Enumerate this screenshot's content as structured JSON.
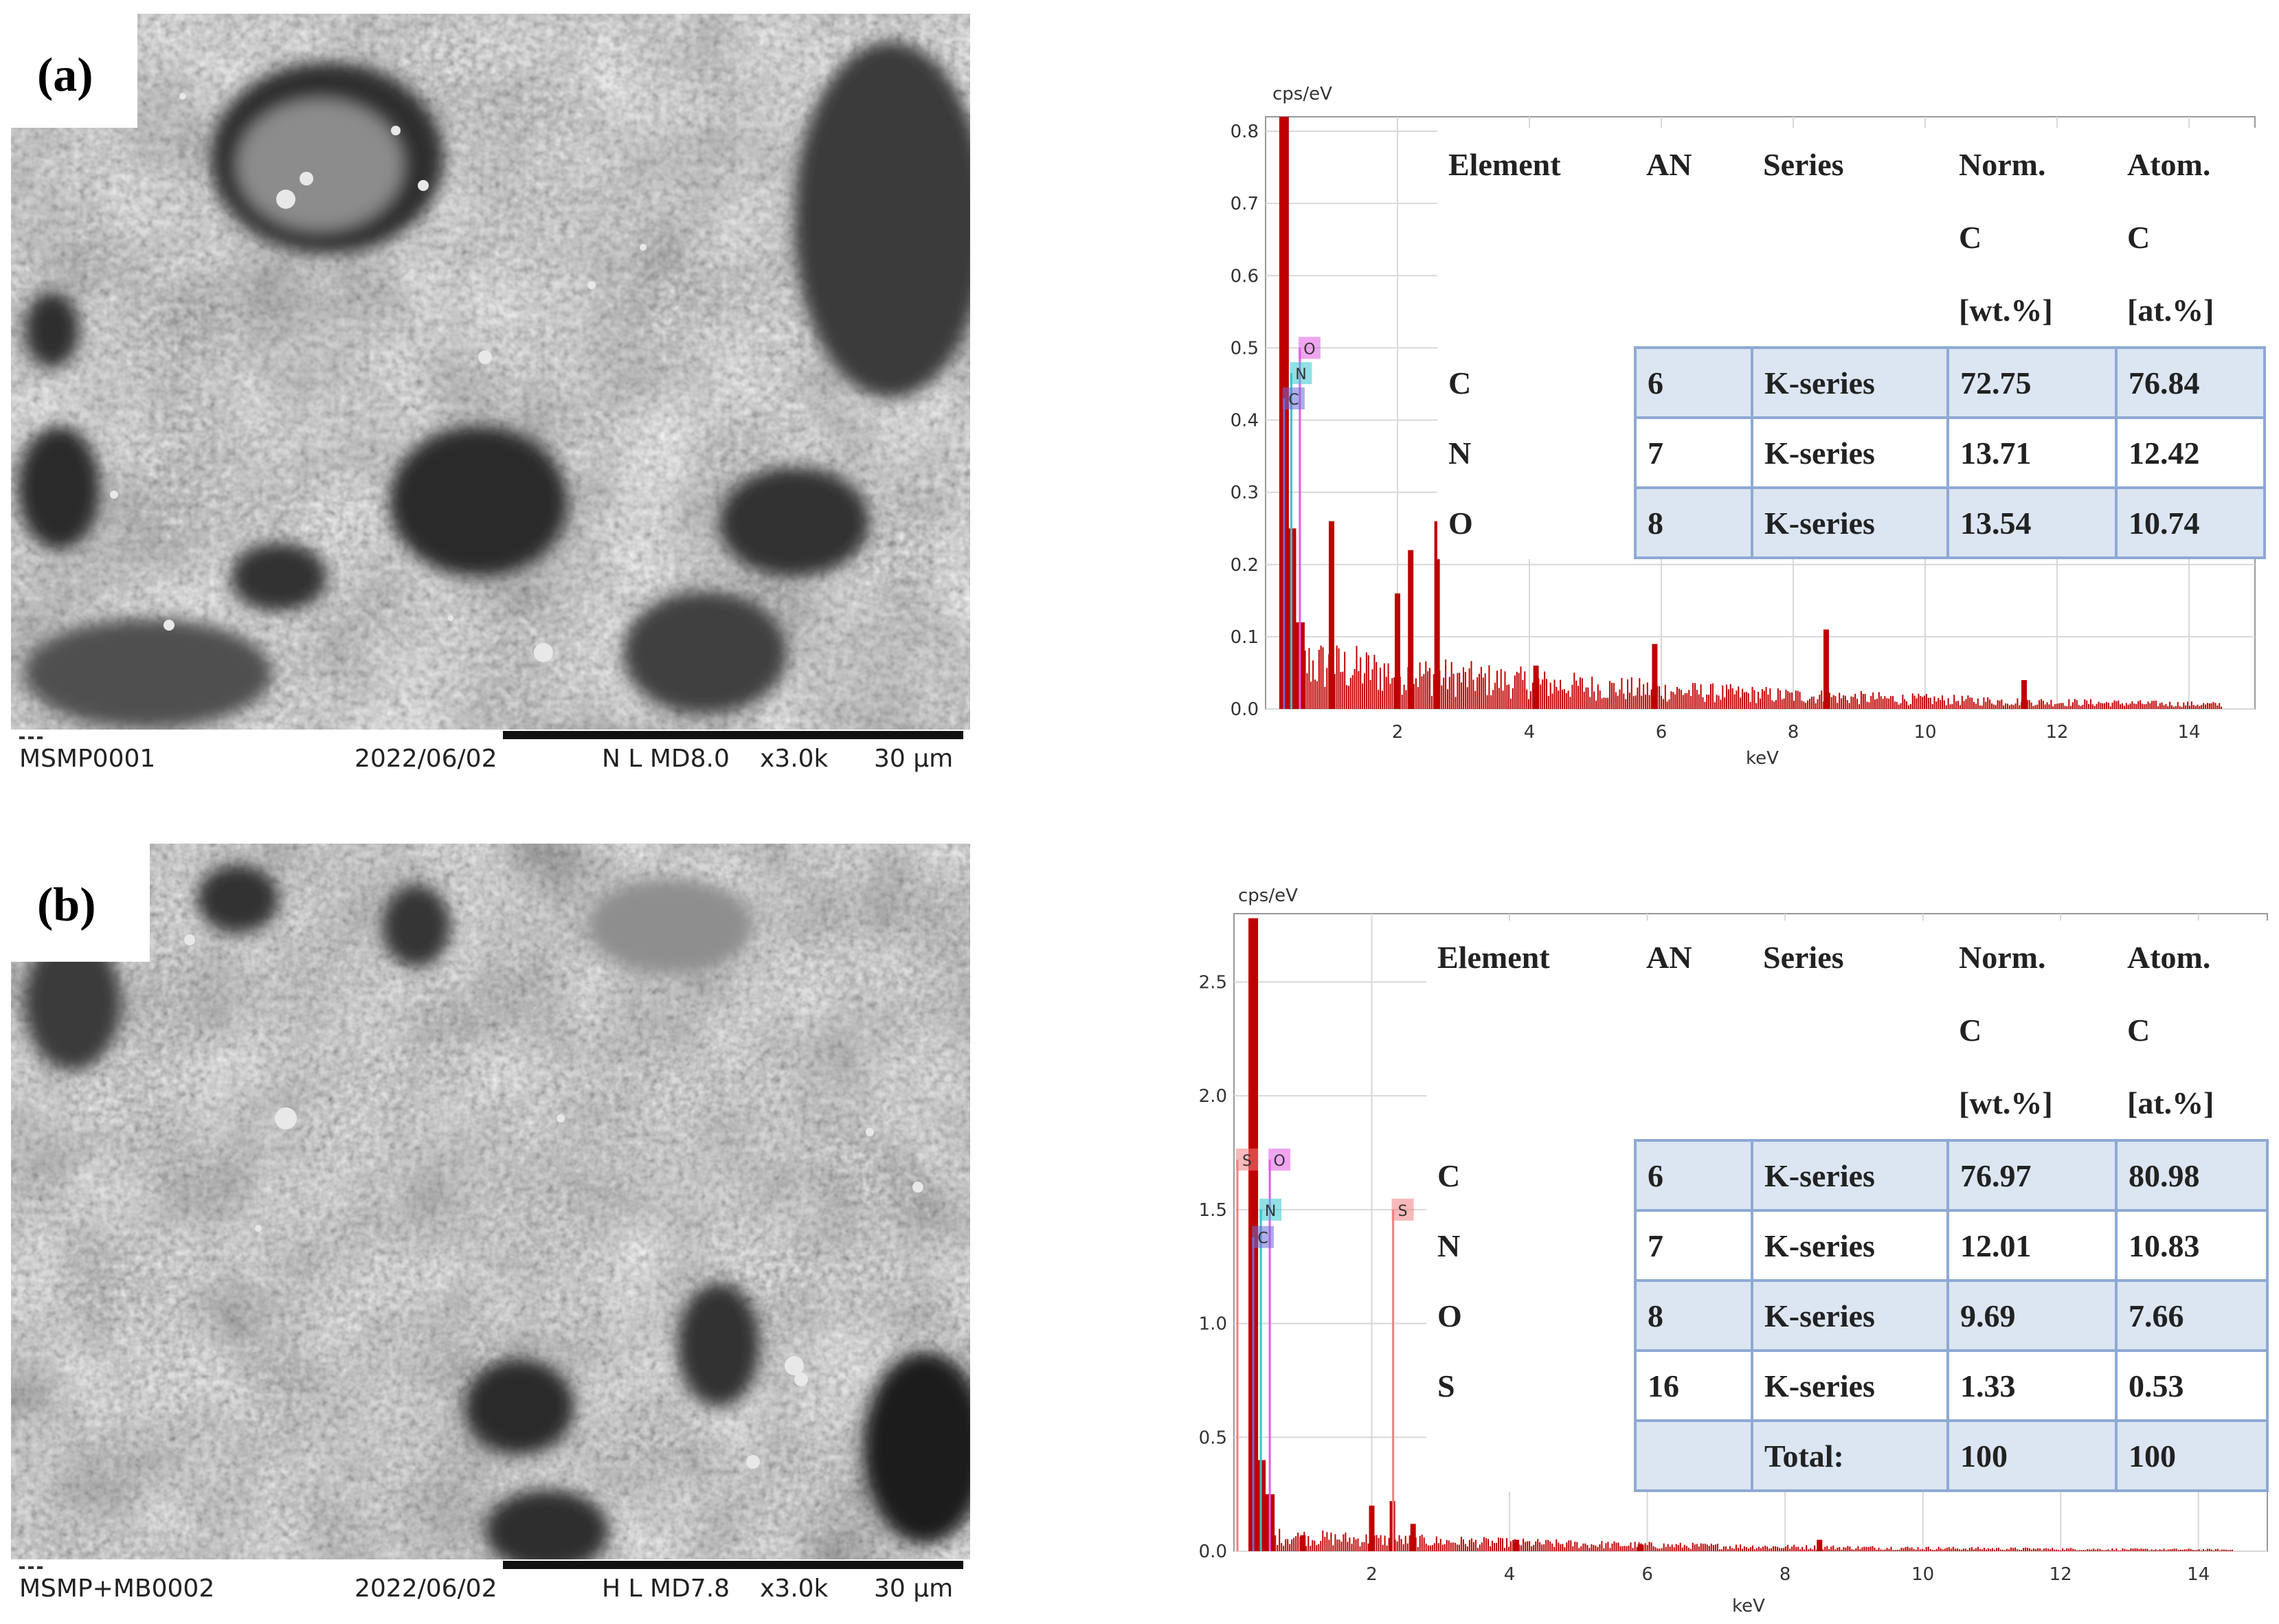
{
  "panels": [
    {
      "label": "(a)",
      "sem": {
        "sample_id": "MSMP0001",
        "date": "2022/06/02",
        "mode": "N L MD8.0",
        "magnification": "x3.0k",
        "scale_bar": "30 μm"
      },
      "spectrum": {
        "y_unit": "cps/eV",
        "x_label": "keV",
        "y_ticks": [
          "0.0",
          "0.1",
          "0.2",
          "0.3",
          "0.4",
          "0.5",
          "0.6",
          "0.7",
          "0.8"
        ],
        "x_ticks": [
          "2",
          "4",
          "6",
          "8",
          "10",
          "12",
          "14"
        ],
        "peak_labels": [
          "O",
          "N",
          "C"
        ]
      },
      "table": {
        "headers": [
          [
            "Element",
            "AN",
            "Series",
            "Norm.",
            "Atom."
          ],
          [
            "",
            "",
            "",
            "C",
            "C"
          ],
          [
            "",
            "",
            "",
            "[wt.%]",
            "[at.%]"
          ]
        ],
        "rows": [
          [
            "C",
            "6",
            "K-series",
            "72.75",
            "76.84"
          ],
          [
            "N",
            "7",
            "K-series",
            "13.71",
            "12.42"
          ],
          [
            "O",
            "8",
            "K-series",
            "13.54",
            "10.74"
          ]
        ]
      }
    },
    {
      "label": "(b)",
      "sem": {
        "sample_id": "MSMP+MB0002",
        "date": "2022/06/02",
        "mode": "H L MD7.8",
        "magnification": "x3.0k",
        "scale_bar": "30 μm"
      },
      "spectrum": {
        "y_unit": "cps/eV",
        "x_label": "keV",
        "y_ticks": [
          "0.0",
          "0.5",
          "1.0",
          "1.5",
          "2.0",
          "2.5"
        ],
        "x_ticks": [
          "2",
          "4",
          "6",
          "8",
          "10",
          "12",
          "14"
        ],
        "peak_labels": [
          "S",
          "O",
          "N",
          "C",
          "S"
        ]
      },
      "table": {
        "headers": [
          [
            "Element",
            "AN",
            "Series",
            "Norm.",
            "Atom."
          ],
          [
            "",
            "",
            "",
            "C",
            "C"
          ],
          [
            "",
            "",
            "",
            "[wt.%]",
            "[at.%]"
          ]
        ],
        "rows": [
          [
            "C",
            "6",
            "K-series",
            "76.97",
            "80.98"
          ],
          [
            "N",
            "7",
            "K-series",
            "12.01",
            "10.83"
          ],
          [
            "O",
            "8",
            "K-series",
            "9.69",
            "7.66"
          ],
          [
            "S",
            "16",
            "K-series",
            "1.33",
            "0.53"
          ],
          [
            "",
            "",
            "Total:",
            "100",
            "100"
          ]
        ]
      }
    }
  ],
  "chart_data": [
    {
      "type": "bar",
      "title": "",
      "xlabel": "keV",
      "ylabel": "cps/eV",
      "xlim": [
        0,
        15
      ],
      "ylim": [
        0,
        0.82
      ],
      "series": [
        {
          "x": [
            0.28,
            0.39,
            0.52,
            1.0,
            2.0,
            2.2,
            2.6,
            4.1,
            5.9,
            8.5,
            11.5
          ],
          "values": [
            0.82,
            0.25,
            0.12,
            0.26,
            0.16,
            0.22,
            0.26,
            0.06,
            0.09,
            0.11,
            0.04
          ]
        }
      ],
      "markers": [
        {
          "label": "O",
          "x": 0.52,
          "color": "#e25de2"
        },
        {
          "label": "N",
          "x": 0.39,
          "color": "#36c7cf"
        },
        {
          "label": "C",
          "x": 0.28,
          "color": "#6b6bd9"
        }
      ]
    },
    {
      "type": "bar",
      "title": "",
      "xlabel": "keV",
      "ylabel": "cps/eV",
      "xlim": [
        0,
        15
      ],
      "ylim": [
        0,
        2.8
      ],
      "series": [
        {
          "x": [
            0.28,
            0.39,
            0.52,
            1.0,
            2.0,
            2.3,
            2.6,
            4.1,
            5.9,
            8.5
          ],
          "values": [
            2.78,
            0.4,
            0.25,
            0.07,
            0.2,
            0.22,
            0.12,
            0.05,
            0.03,
            0.05
          ]
        }
      ],
      "markers": [
        {
          "label": "S",
          "x": 0.05,
          "color": "#f08080"
        },
        {
          "label": "O",
          "x": 0.52,
          "color": "#e25de2"
        },
        {
          "label": "N",
          "x": 0.39,
          "color": "#36c7cf"
        },
        {
          "label": "C",
          "x": 0.28,
          "color": "#6b6bd9"
        },
        {
          "label": "S",
          "x": 2.31,
          "color": "#f08080"
        }
      ]
    }
  ]
}
